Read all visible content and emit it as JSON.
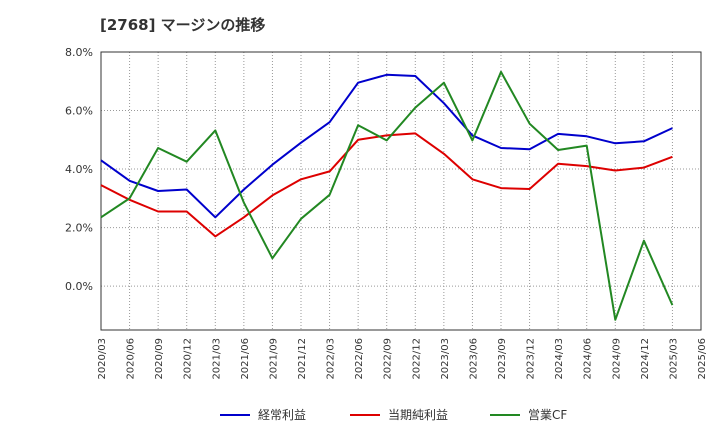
{
  "title": "[2768]  マージンの推移",
  "chart_data": {
    "type": "line",
    "title": "[2768]  マージンの推移",
    "xlabel": "",
    "ylabel": "",
    "ylim": [
      -1.5,
      8.0
    ],
    "yticks": [
      "8.0%",
      "6.0%",
      "4.0%",
      "2.0%",
      "0.0%"
    ],
    "ytick_values": [
      8,
      6,
      4,
      2,
      0
    ],
    "grid": true,
    "legend_position": "bottom",
    "x": [
      "2020/03",
      "2020/06",
      "2020/09",
      "2020/12",
      "2021/03",
      "2021/06",
      "2021/09",
      "2021/12",
      "2022/03",
      "2022/06",
      "2022/09",
      "2022/12",
      "2023/03",
      "2023/06",
      "2023/09",
      "2023/12",
      "2024/03",
      "2024/06",
      "2024/09",
      "2024/12",
      "2025/03",
      "2025/06"
    ],
    "series": [
      {
        "name": "経常利益",
        "color": "#0000cc",
        "values": [
          4.3,
          3.6,
          3.25,
          3.3,
          2.35,
          3.3,
          4.15,
          4.9,
          5.6,
          6.95,
          7.22,
          7.18,
          6.25,
          5.15,
          4.72,
          4.68,
          5.2,
          5.12,
          4.88,
          4.95,
          5.4,
          null
        ]
      },
      {
        "name": "当期純利益",
        "color": "#dd0000",
        "values": [
          3.45,
          2.95,
          2.55,
          2.55,
          1.7,
          2.35,
          3.1,
          3.65,
          3.92,
          5.0,
          5.15,
          5.22,
          4.52,
          3.65,
          3.35,
          3.32,
          4.18,
          4.1,
          3.95,
          4.05,
          4.42,
          null
        ]
      },
      {
        "name": "営業CF",
        "color": "#228822",
        "values": [
          2.35,
          3.0,
          4.72,
          4.25,
          5.32,
          2.85,
          0.95,
          2.3,
          3.12,
          5.5,
          4.98,
          6.1,
          6.95,
          4.98,
          7.32,
          5.55,
          4.65,
          4.8,
          -1.15,
          1.55,
          -0.65,
          null
        ]
      }
    ]
  }
}
